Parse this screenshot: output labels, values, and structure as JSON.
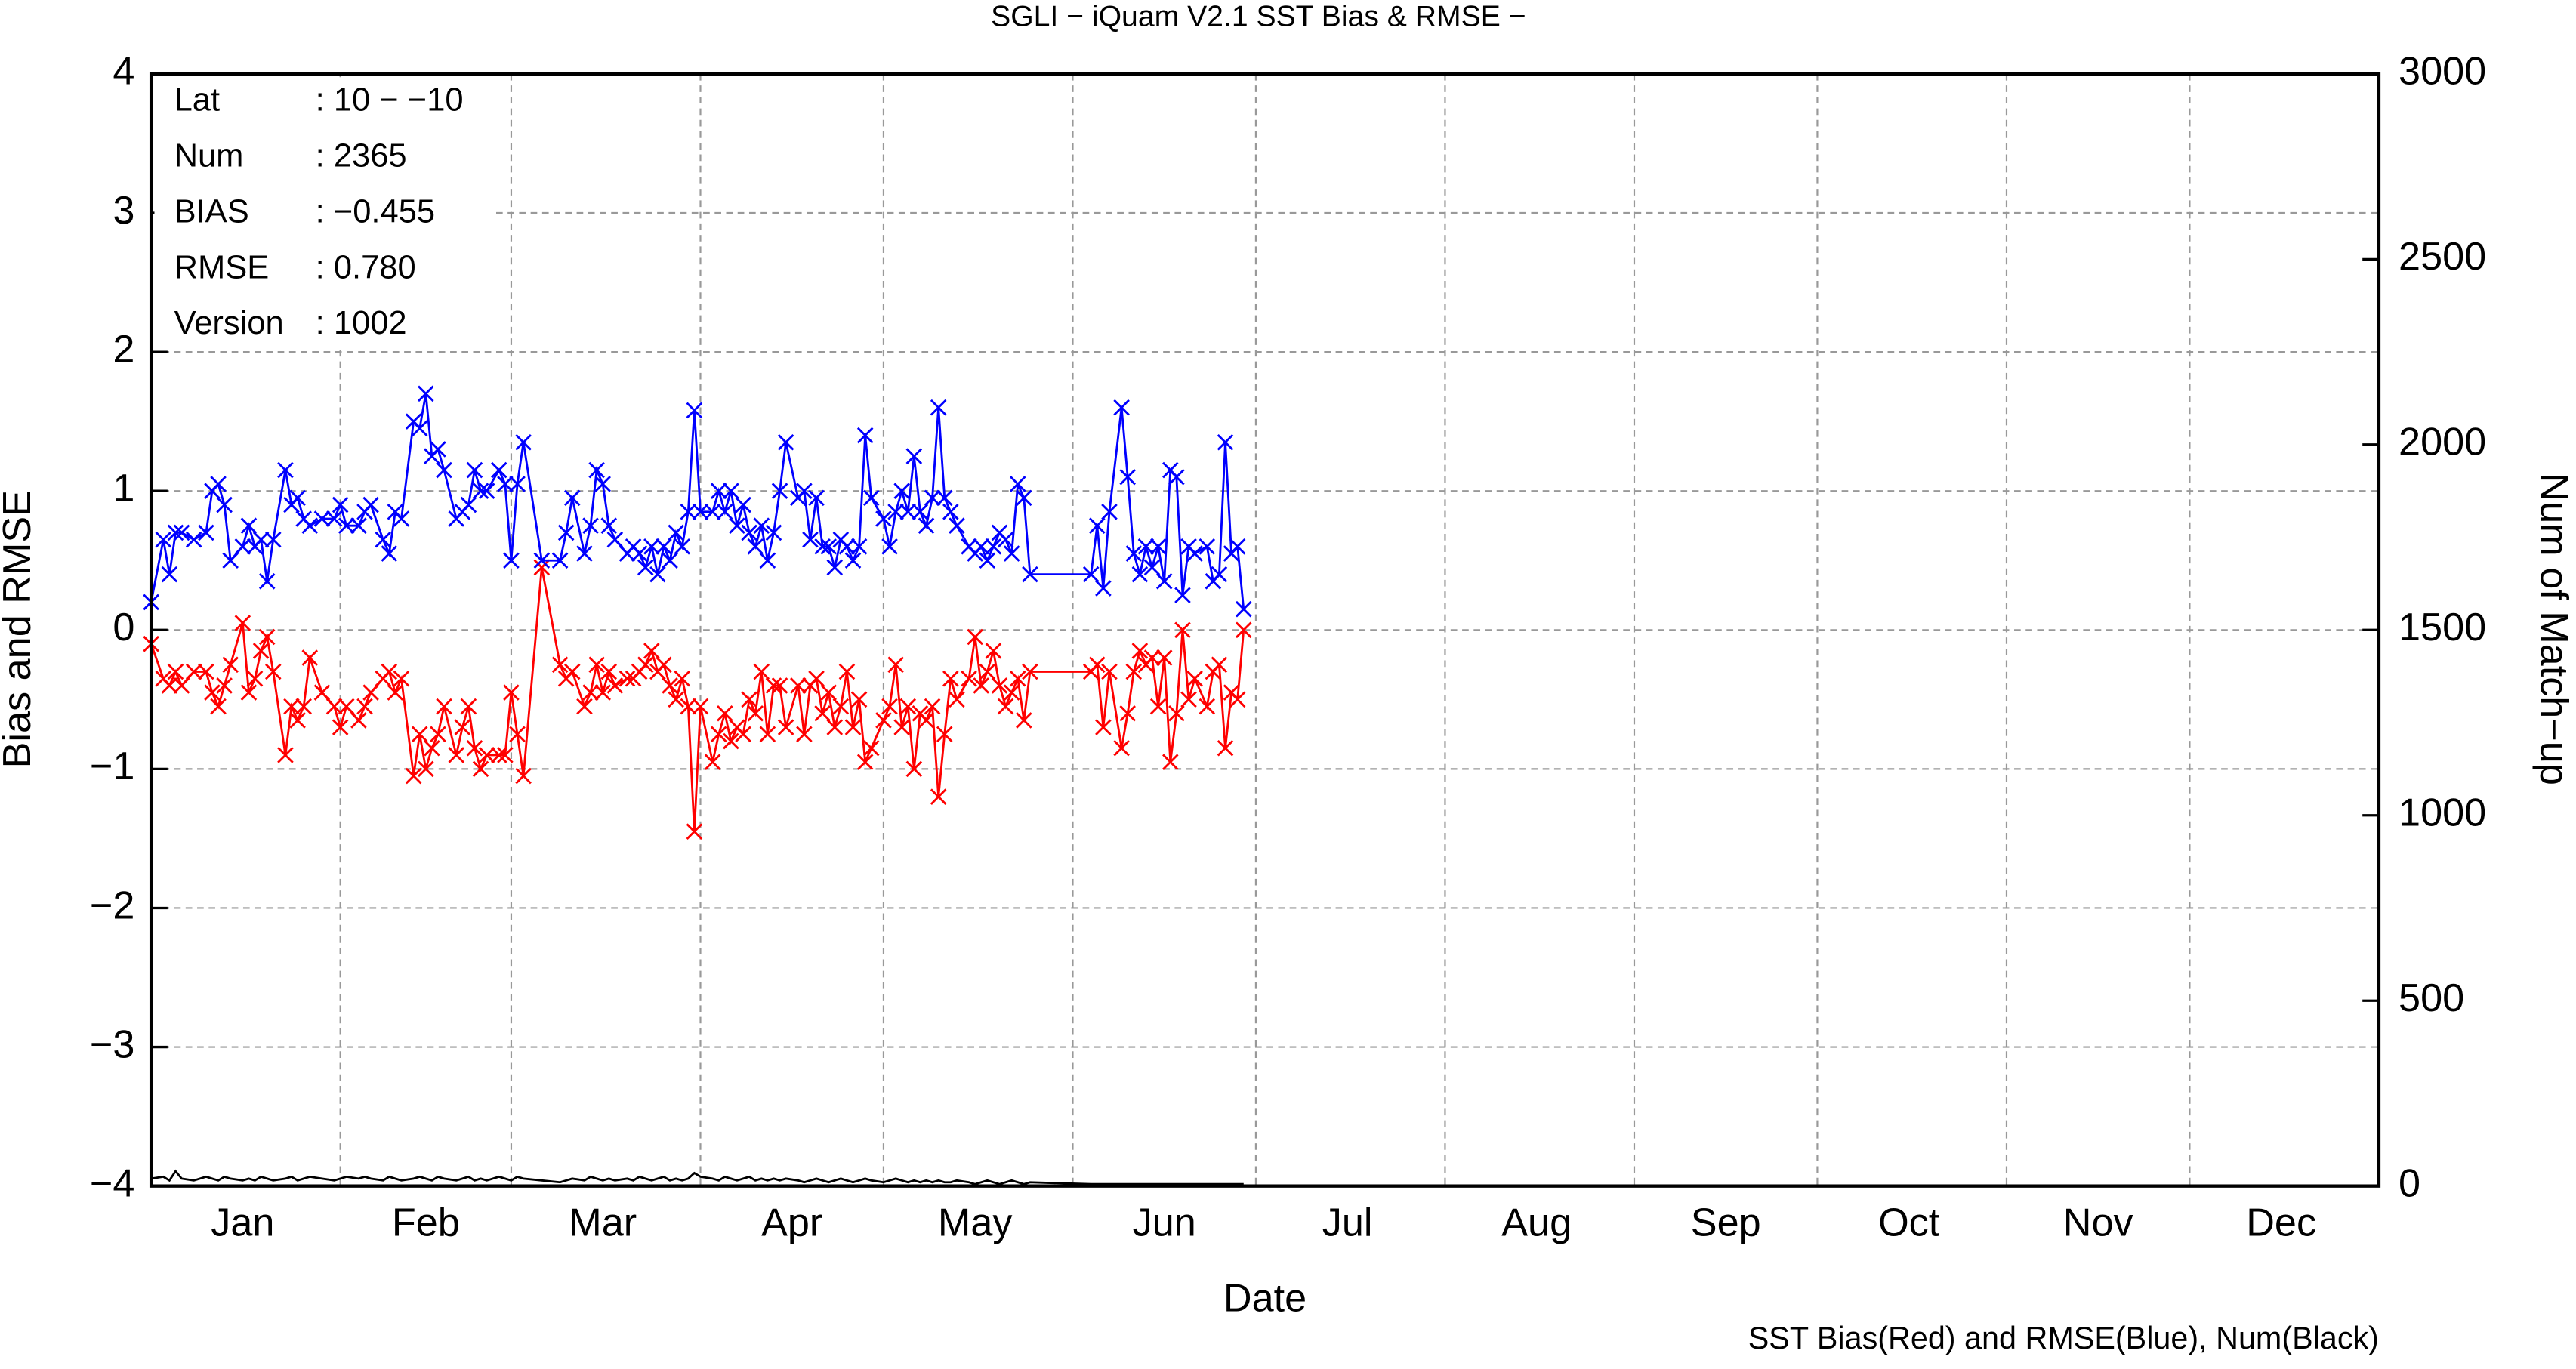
{
  "chart_data": {
    "type": "line",
    "title": "SGLI − iQuam V2.1 SST Bias & RMSE  −",
    "xlabel": "Date",
    "ylabel": "Bias and RMSE",
    "y2label": "Num of Match−up",
    "footnote": "SST Bias(Red) and RMSE(Blue), Num(Black)",
    "annotations": [
      {
        "label": "Lat",
        "value": ": 10 − −10"
      },
      {
        "label": "Num",
        "value": ": 2365"
      },
      {
        "label": "BIAS",
        "value": ": −0.455"
      },
      {
        "label": "RMSE",
        "value": ": 0.780"
      },
      {
        "label": "Version",
        "value": ": 1002"
      }
    ],
    "xlim": [
      1,
      366
    ],
    "xticks": [
      {
        "value": 16,
        "label": "Jan"
      },
      {
        "value": 46,
        "label": "Feb"
      },
      {
        "value": 75,
        "label": "Mar"
      },
      {
        "value": 106,
        "label": "Apr"
      },
      {
        "value": 136,
        "label": "May"
      },
      {
        "value": 167,
        "label": "Jun"
      },
      {
        "value": 197,
        "label": "Jul"
      },
      {
        "value": 228,
        "label": "Aug"
      },
      {
        "value": 259,
        "label": "Sep"
      },
      {
        "value": 289,
        "label": "Oct"
      },
      {
        "value": 320,
        "label": "Nov"
      },
      {
        "value": 350,
        "label": "Dec"
      }
    ],
    "xgrid": [
      32,
      60,
      91,
      121,
      152,
      182,
      213,
      244,
      274,
      305,
      335
    ],
    "ylim": [
      -4,
      4
    ],
    "yticks": [
      {
        "value": -4,
        "label": "−4"
      },
      {
        "value": -3,
        "label": "−3"
      },
      {
        "value": -2,
        "label": "−2"
      },
      {
        "value": -1,
        "label": "−1"
      },
      0,
      1,
      2,
      3,
      4
    ],
    "y2lim": [
      0,
      3000
    ],
    "y2ticks": [
      0,
      500,
      1000,
      1500,
      2000,
      2500,
      3000
    ],
    "grid": true,
    "x": [
      1,
      3,
      4,
      5,
      6,
      8,
      10,
      11,
      12,
      13,
      14,
      16,
      17,
      18,
      19,
      20,
      21,
      23,
      24,
      25,
      26,
      27,
      29,
      31,
      32,
      33,
      35,
      36,
      37,
      39,
      40,
      41,
      42,
      44,
      45,
      46,
      47,
      48,
      49,
      51,
      52,
      53,
      54,
      55,
      56,
      58,
      59,
      60,
      61,
      62,
      65,
      68,
      69,
      70,
      72,
      73,
      74,
      75,
      76,
      77,
      79,
      80,
      81,
      82,
      83,
      84,
      85,
      86,
      87,
      88,
      89,
      90,
      91,
      93,
      94,
      95,
      96,
      97,
      98,
      99,
      100,
      101,
      102,
      103,
      104,
      105,
      107,
      108,
      109,
      110,
      111,
      112,
      113,
      114,
      115,
      116,
      117,
      118,
      119,
      121,
      122,
      123,
      124,
      125,
      126,
      127,
      128,
      129,
      130,
      131,
      132,
      133,
      135,
      136,
      137,
      138,
      139,
      140,
      141,
      142,
      143,
      144,
      145,
      155,
      156,
      157,
      158,
      160,
      161,
      162,
      163,
      164,
      165,
      166,
      167,
      168,
      169,
      170,
      171,
      172,
      174,
      175,
      176,
      177,
      178,
      179,
      180
    ],
    "series": [
      {
        "color": "#ff0000",
        "marker": "x",
        "values": [
          -0.1,
          -0.35,
          -0.4,
          -0.3,
          -0.4,
          -0.3,
          -0.3,
          -0.45,
          -0.55,
          -0.4,
          -0.25,
          0.05,
          -0.45,
          -0.35,
          -0.15,
          -0.05,
          -0.3,
          -0.9,
          -0.55,
          -0.65,
          -0.55,
          -0.2,
          -0.45,
          -0.55,
          -0.7,
          -0.55,
          -0.65,
          -0.55,
          -0.45,
          -0.35,
          -0.3,
          -0.45,
          -0.35,
          -1.05,
          -0.75,
          -1.0,
          -0.85,
          -0.75,
          -0.55,
          -0.9,
          -0.7,
          -0.55,
          -0.85,
          -1.0,
          -0.9,
          -0.9,
          -0.9,
          -0.45,
          -0.75,
          -1.05,
          0.45,
          -0.25,
          -0.35,
          -0.3,
          -0.55,
          -0.45,
          -0.25,
          -0.45,
          -0.3,
          -0.4,
          -0.35,
          -0.35,
          -0.3,
          -0.25,
          -0.15,
          -0.3,
          -0.25,
          -0.4,
          -0.5,
          -0.35,
          -0.55,
          -1.45,
          -0.55,
          -0.95,
          -0.75,
          -0.6,
          -0.8,
          -0.7,
          -0.75,
          -0.5,
          -0.6,
          -0.3,
          -0.75,
          -0.4,
          -0.4,
          -0.7,
          -0.4,
          -0.75,
          -0.4,
          -0.35,
          -0.6,
          -0.45,
          -0.7,
          -0.55,
          -0.3,
          -0.7,
          -0.5,
          -0.95,
          -0.85,
          -0.65,
          -0.55,
          -0.25,
          -0.7,
          -0.55,
          -1.0,
          -0.6,
          -0.65,
          -0.55,
          -1.2,
          -0.75,
          -0.35,
          -0.5,
          -0.35,
          -0.05,
          -0.4,
          -0.3,
          -0.15,
          -0.4,
          -0.55,
          -0.45,
          -0.35,
          -0.65,
          -0.3,
          -0.3,
          -0.25,
          -0.7,
          -0.3,
          -0.85,
          -0.6,
          -0.3,
          -0.15,
          -0.25,
          -0.2,
          -0.55,
          -0.2,
          -0.95,
          -0.6,
          0.0,
          -0.5,
          -0.35,
          -0.55,
          -0.3,
          -0.25,
          -0.85,
          -0.45,
          -0.5,
          0.0
        ]
      },
      {
        "color": "#0000ff",
        "marker": "x",
        "values": [
          0.2,
          0.65,
          0.4,
          0.7,
          0.7,
          0.65,
          0.7,
          1.0,
          1.05,
          0.9,
          0.5,
          0.6,
          0.75,
          0.6,
          0.65,
          0.35,
          0.65,
          1.15,
          0.9,
          0.95,
          0.8,
          0.75,
          0.8,
          0.8,
          0.9,
          0.75,
          0.75,
          0.85,
          0.9,
          0.65,
          0.55,
          0.85,
          0.8,
          1.5,
          1.45,
          1.7,
          1.25,
          1.3,
          1.15,
          0.8,
          0.85,
          0.9,
          1.15,
          1.0,
          1.0,
          1.15,
          1.05,
          0.5,
          1.05,
          1.35,
          0.5,
          0.5,
          0.7,
          0.95,
          0.55,
          0.75,
          1.15,
          1.05,
          0.75,
          0.65,
          0.55,
          0.6,
          0.55,
          0.45,
          0.6,
          0.4,
          0.6,
          0.5,
          0.7,
          0.6,
          0.85,
          1.58,
          0.85,
          0.85,
          1.0,
          0.85,
          1.0,
          0.75,
          0.9,
          0.7,
          0.6,
          0.75,
          0.5,
          0.7,
          1.0,
          1.35,
          0.95,
          1.0,
          0.65,
          0.95,
          0.6,
          0.6,
          0.45,
          0.65,
          0.6,
          0.5,
          0.6,
          1.4,
          0.95,
          0.8,
          0.6,
          0.85,
          1.0,
          0.85,
          1.25,
          0.85,
          0.75,
          0.95,
          1.6,
          0.95,
          0.85,
          0.75,
          0.6,
          0.55,
          0.6,
          0.5,
          0.6,
          0.7,
          0.65,
          0.55,
          1.05,
          0.95,
          0.4,
          0.4,
          0.75,
          0.3,
          0.85,
          1.6,
          1.1,
          0.55,
          0.4,
          0.6,
          0.45,
          0.6,
          0.35,
          1.15,
          1.1,
          0.25,
          0.6,
          0.55,
          0.6,
          0.35,
          0.4,
          1.35,
          0.55,
          0.6,
          0.15
        ]
      },
      {
        "color": "#000000",
        "axis": "y2",
        "values": [
          20,
          25,
          15,
          40,
          20,
          15,
          25,
          20,
          15,
          25,
          20,
          15,
          20,
          15,
          25,
          20,
          15,
          20,
          25,
          15,
          20,
          25,
          20,
          15,
          20,
          25,
          20,
          25,
          20,
          15,
          25,
          20,
          15,
          20,
          25,
          20,
          15,
          25,
          20,
          15,
          20,
          25,
          15,
          20,
          15,
          25,
          20,
          15,
          25,
          20,
          15,
          10,
          15,
          20,
          15,
          25,
          20,
          15,
          20,
          15,
          20,
          15,
          25,
          20,
          15,
          20,
          25,
          15,
          20,
          15,
          20,
          35,
          25,
          20,
          15,
          25,
          20,
          15,
          20,
          25,
          15,
          20,
          15,
          20,
          15,
          20,
          15,
          10,
          15,
          20,
          15,
          10,
          15,
          20,
          15,
          10,
          15,
          20,
          15,
          10,
          15,
          20,
          15,
          10,
          15,
          10,
          15,
          10,
          15,
          10,
          10,
          15,
          10,
          5,
          10,
          15,
          10,
          5,
          10,
          15,
          10,
          5,
          10,
          5,
          5,
          5,
          5,
          5,
          5,
          5,
          5,
          5,
          5,
          5,
          5,
          5,
          5,
          5,
          5,
          5,
          5,
          5,
          5,
          5,
          5,
          5,
          5
        ]
      }
    ]
  }
}
